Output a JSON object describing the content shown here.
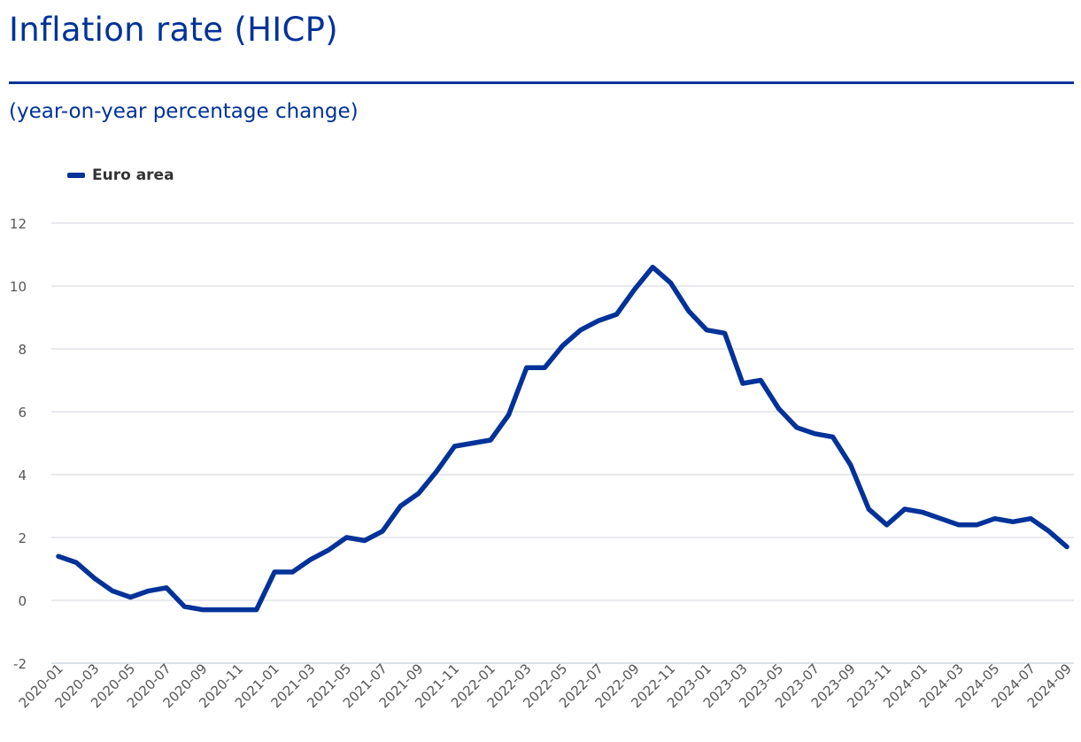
{
  "header": {
    "title": "Inflation rate (HICP)",
    "subtitle": "(year-on-year percentage change)"
  },
  "colors": {
    "series": "#003299",
    "grid": "#d9dce3",
    "axis_text": "#555555"
  },
  "chart_data": {
    "type": "line",
    "title": "Inflation rate (HICP)",
    "subtitle": "(year-on-year percentage change)",
    "xlabel": "",
    "ylabel": "",
    "ylim": [
      -2,
      12
    ],
    "yticks": [
      -2,
      0,
      2,
      4,
      6,
      8,
      10,
      12
    ],
    "grid": true,
    "legend_position": "top-left",
    "x": [
      "2020-01",
      "2020-02",
      "2020-03",
      "2020-04",
      "2020-05",
      "2020-06",
      "2020-07",
      "2020-08",
      "2020-09",
      "2020-10",
      "2020-11",
      "2020-12",
      "2021-01",
      "2021-02",
      "2021-03",
      "2021-04",
      "2021-05",
      "2021-06",
      "2021-07",
      "2021-08",
      "2021-09",
      "2021-10",
      "2021-11",
      "2021-12",
      "2022-01",
      "2022-02",
      "2022-03",
      "2022-04",
      "2022-05",
      "2022-06",
      "2022-07",
      "2022-08",
      "2022-09",
      "2022-10",
      "2022-11",
      "2022-12",
      "2023-01",
      "2023-02",
      "2023-03",
      "2023-04",
      "2023-05",
      "2023-06",
      "2023-07",
      "2023-08",
      "2023-09",
      "2023-10",
      "2023-11",
      "2023-12",
      "2024-01",
      "2024-02",
      "2024-03",
      "2024-04",
      "2024-05",
      "2024-06",
      "2024-07",
      "2024-08",
      "2024-09"
    ],
    "xtick_labels": [
      "2020-01",
      "2020-03",
      "2020-05",
      "2020-07",
      "2020-09",
      "2020-11",
      "2021-01",
      "2021-03",
      "2021-05",
      "2021-07",
      "2021-09",
      "2021-11",
      "2022-01",
      "2022-03",
      "2022-05",
      "2022-07",
      "2022-09",
      "2022-11",
      "2023-01",
      "2023-03",
      "2023-05",
      "2023-07",
      "2023-09",
      "2023-11",
      "2024-01",
      "2024-03",
      "2024-05",
      "2024-07",
      "2024-09"
    ],
    "series": [
      {
        "name": "Euro area",
        "color": "#003299",
        "values": [
          1.4,
          1.2,
          0.7,
          0.3,
          0.1,
          0.3,
          0.4,
          -0.2,
          -0.3,
          -0.3,
          -0.3,
          -0.3,
          0.9,
          0.9,
          1.3,
          1.6,
          2.0,
          1.9,
          2.2,
          3.0,
          3.4,
          4.1,
          4.9,
          5.0,
          5.1,
          5.9,
          7.4,
          7.4,
          8.1,
          8.6,
          8.9,
          9.1,
          9.9,
          10.6,
          10.1,
          9.2,
          8.6,
          8.5,
          6.9,
          7.0,
          6.1,
          5.5,
          5.3,
          5.2,
          4.3,
          2.9,
          2.4,
          2.9,
          2.8,
          2.6,
          2.4,
          2.4,
          2.6,
          2.5,
          2.6,
          2.2,
          1.7
        ]
      }
    ]
  }
}
